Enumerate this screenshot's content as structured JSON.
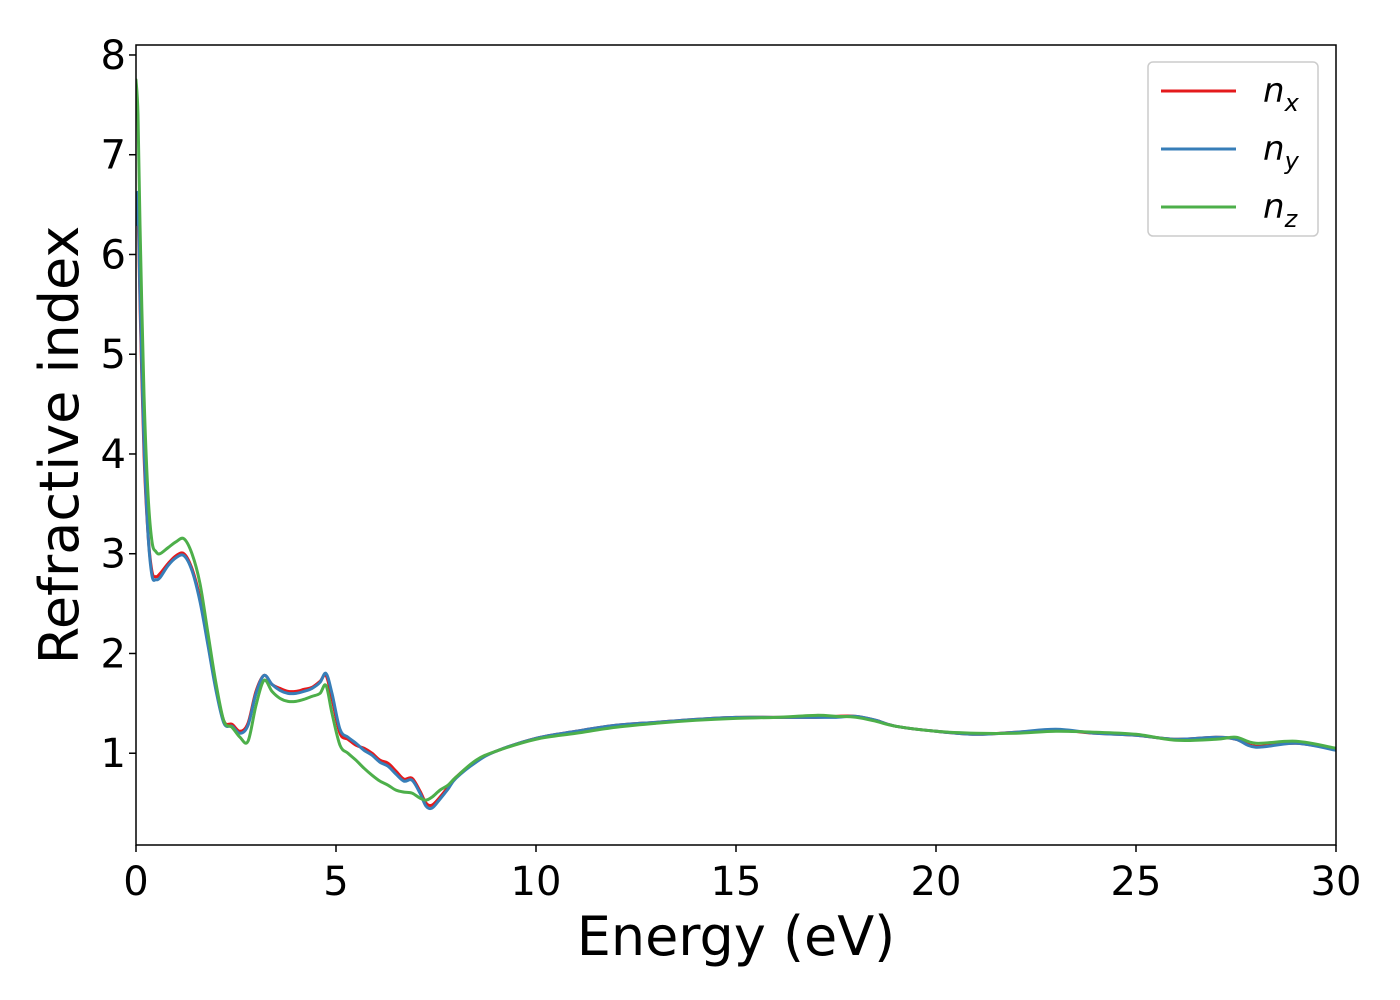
{
  "chart_data": {
    "type": "line",
    "xlabel": "Energy (eV)",
    "ylabel": "Refractive index",
    "xlim": [
      0,
      30
    ],
    "ylim": [
      0.08,
      8.1
    ],
    "xticks": [
      "0",
      "5",
      "10",
      "15",
      "20",
      "25",
      "30"
    ],
    "yticks": [
      "1",
      "2",
      "3",
      "4",
      "5",
      "6",
      "7",
      "8"
    ],
    "grid": false,
    "legend_position": "top-right",
    "series": [
      {
        "name": "n_x",
        "label_main": "n",
        "label_sub": "x",
        "color": "#e41a1c",
        "x": [
          0,
          0.05,
          0.1,
          0.2,
          0.3,
          0.4,
          0.5,
          0.6,
          0.8,
          1.0,
          1.2,
          1.4,
          1.6,
          1.8,
          2.0,
          2.2,
          2.4,
          2.6,
          2.8,
          3.0,
          3.2,
          3.4,
          3.6,
          3.8,
          4.0,
          4.2,
          4.4,
          4.6,
          4.75,
          4.9,
          5.1,
          5.3,
          5.5,
          5.7,
          5.9,
          6.1,
          6.3,
          6.5,
          6.7,
          6.9,
          7.1,
          7.25,
          7.4,
          7.6,
          7.8,
          8.0,
          8.5,
          9.0,
          10,
          11,
          12,
          13,
          14,
          15,
          16,
          17,
          17.5,
          18,
          18.5,
          19,
          20,
          21,
          22,
          23,
          24,
          25,
          26,
          27,
          27.5,
          28,
          29,
          30
        ],
        "y": [
          6.6,
          6.5,
          5.5,
          4.0,
          3.2,
          2.82,
          2.77,
          2.8,
          2.9,
          2.98,
          3.0,
          2.85,
          2.55,
          2.1,
          1.65,
          1.32,
          1.29,
          1.22,
          1.3,
          1.62,
          1.78,
          1.69,
          1.65,
          1.62,
          1.62,
          1.64,
          1.66,
          1.72,
          1.78,
          1.55,
          1.2,
          1.14,
          1.08,
          1.05,
          1.0,
          0.93,
          0.9,
          0.82,
          0.74,
          0.75,
          0.62,
          0.5,
          0.48,
          0.56,
          0.66,
          0.76,
          0.92,
          1.02,
          1.15,
          1.22,
          1.28,
          1.31,
          1.34,
          1.36,
          1.36,
          1.36,
          1.37,
          1.37,
          1.33,
          1.27,
          1.22,
          1.19,
          1.21,
          1.23,
          1.2,
          1.18,
          1.14,
          1.16,
          1.14,
          1.07,
          1.1,
          1.04
        ]
      },
      {
        "name": "n_y",
        "label_main": "n",
        "label_sub": "y",
        "color": "#377eb8",
        "x": [
          0,
          0.05,
          0.1,
          0.2,
          0.3,
          0.4,
          0.5,
          0.6,
          0.8,
          1.0,
          1.2,
          1.4,
          1.6,
          1.8,
          2.0,
          2.2,
          2.4,
          2.6,
          2.8,
          3.0,
          3.2,
          3.4,
          3.6,
          3.8,
          4.0,
          4.2,
          4.4,
          4.6,
          4.75,
          4.9,
          5.1,
          5.3,
          5.5,
          5.7,
          5.9,
          6.1,
          6.3,
          6.5,
          6.7,
          6.9,
          7.1,
          7.25,
          7.4,
          7.6,
          7.8,
          8.0,
          8.5,
          9.0,
          10,
          11,
          12,
          13,
          14,
          15,
          16,
          17,
          17.5,
          18,
          18.5,
          19,
          20,
          21,
          22,
          23,
          24,
          25,
          26,
          27,
          27.5,
          28,
          29,
          30
        ],
        "y": [
          6.3,
          6.6,
          5.6,
          4.1,
          3.2,
          2.78,
          2.74,
          2.76,
          2.88,
          2.96,
          2.98,
          2.83,
          2.52,
          2.08,
          1.63,
          1.3,
          1.27,
          1.2,
          1.28,
          1.6,
          1.78,
          1.69,
          1.63,
          1.6,
          1.6,
          1.62,
          1.65,
          1.71,
          1.8,
          1.6,
          1.24,
          1.16,
          1.1,
          1.03,
          0.98,
          0.91,
          0.87,
          0.79,
          0.72,
          0.73,
          0.6,
          0.47,
          0.45,
          0.54,
          0.64,
          0.75,
          0.91,
          1.02,
          1.15,
          1.22,
          1.28,
          1.31,
          1.34,
          1.36,
          1.36,
          1.36,
          1.36,
          1.37,
          1.33,
          1.27,
          1.22,
          1.19,
          1.21,
          1.24,
          1.2,
          1.18,
          1.14,
          1.16,
          1.14,
          1.06,
          1.1,
          1.03
        ]
      },
      {
        "name": "n_z",
        "label_main": "n",
        "label_sub": "z",
        "color": "#4daf4a",
        "x": [
          0,
          0.05,
          0.1,
          0.2,
          0.3,
          0.4,
          0.5,
          0.6,
          0.8,
          1.0,
          1.2,
          1.4,
          1.6,
          1.8,
          2.0,
          2.2,
          2.4,
          2.6,
          2.8,
          3.0,
          3.2,
          3.4,
          3.6,
          3.8,
          4.0,
          4.2,
          4.4,
          4.6,
          4.75,
          4.9,
          5.1,
          5.3,
          5.5,
          5.7,
          5.9,
          6.1,
          6.3,
          6.5,
          6.7,
          6.9,
          7.1,
          7.25,
          7.4,
          7.6,
          7.8,
          8.0,
          8.5,
          9.0,
          10,
          11,
          12,
          13,
          14,
          15,
          16,
          17,
          17.5,
          18,
          18.5,
          19,
          20,
          21,
          22,
          23,
          24,
          25,
          26,
          27,
          27.5,
          28,
          29,
          30
        ],
        "y": [
          7.75,
          7.4,
          6.3,
          4.6,
          3.6,
          3.12,
          3.02,
          3.0,
          3.06,
          3.12,
          3.15,
          3.0,
          2.7,
          2.2,
          1.7,
          1.32,
          1.26,
          1.16,
          1.12,
          1.48,
          1.73,
          1.62,
          1.55,
          1.52,
          1.52,
          1.54,
          1.57,
          1.6,
          1.68,
          1.4,
          1.08,
          1.0,
          0.93,
          0.85,
          0.78,
          0.72,
          0.68,
          0.63,
          0.61,
          0.6,
          0.55,
          0.53,
          0.56,
          0.63,
          0.68,
          0.76,
          0.93,
          1.02,
          1.14,
          1.2,
          1.26,
          1.3,
          1.33,
          1.35,
          1.36,
          1.38,
          1.37,
          1.36,
          1.32,
          1.27,
          1.22,
          1.2,
          1.2,
          1.22,
          1.21,
          1.19,
          1.13,
          1.14,
          1.16,
          1.1,
          1.12,
          1.05
        ]
      }
    ]
  }
}
